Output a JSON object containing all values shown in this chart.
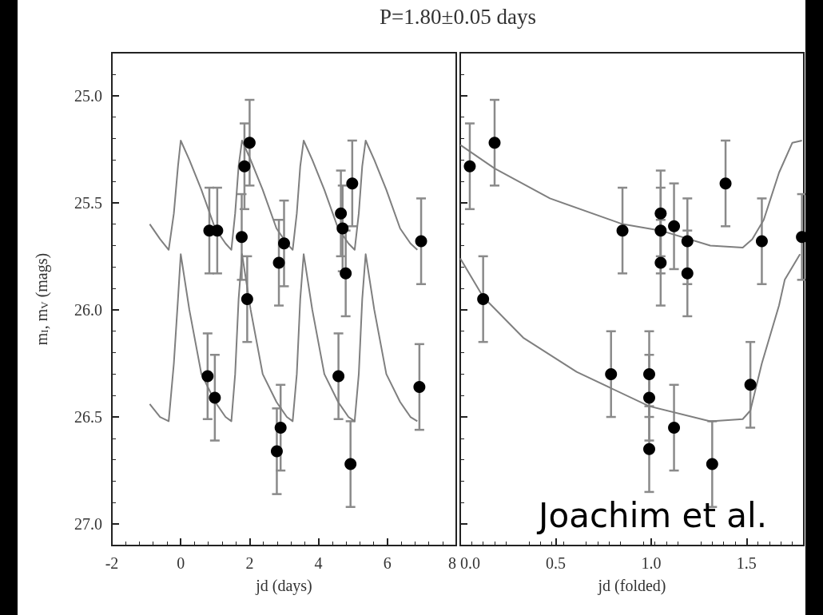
{
  "chart_data": [
    {
      "type": "scatter",
      "title": "P=1.80±0.05 days",
      "xlabel": "jd (days)",
      "ylabel": "m$_{I}$, m$_{V}$ (mags)",
      "xlim": [
        -2,
        8.0
      ],
      "xticks": [
        -2,
        0,
        2,
        4,
        6,
        8
      ],
      "ylim": [
        27.1,
        24.8
      ],
      "yticks": [
        {
          "value": 25,
          "label": "25.0"
        },
        25.5,
        {
          "value": 26,
          "label": "26.0"
        },
        26.5,
        {
          "value": 27,
          "label": "27.0"
        }
      ],
      "marker": "circle",
      "series": [
        {
          "color": "#000000",
          "x": [
            0.83,
            1.06,
            1.77,
            1.85,
            2.0,
            2.85,
            3.0,
            4.65,
            4.7,
            4.79,
            4.98,
            6.98
          ],
          "values": [
            25.63,
            25.63,
            25.66,
            25.33,
            25.22,
            25.78,
            25.69,
            25.55,
            25.62,
            25.83,
            25.41,
            25.68
          ],
          "errors": [
            0.2,
            0.2,
            0.2,
            0.2,
            0.2,
            0.2,
            0.2,
            0.2,
            0.2,
            0.2,
            0.2,
            0.2
          ]
        },
        {
          "color": "#000000",
          "x": [
            0.78,
            0.99,
            1.93,
            2.79,
            2.9,
            4.58,
            4.93,
            6.93
          ],
          "values": [
            26.31,
            26.41,
            25.95,
            26.66,
            26.55,
            26.31,
            26.72,
            26.36
          ],
          "errors": [
            0.2,
            0.2,
            0.2,
            0.2,
            0.2,
            0.2,
            0.2,
            0.2
          ]
        },
        {
          "type": "line",
          "marker": "none",
          "color": "#7f7f7f",
          "x": [
            -0.9,
            -0.6,
            -0.35,
            -0.2,
            -0.08,
            0,
            0.25,
            0.6,
            1.0,
            1.3,
            1.47,
            1.58,
            1.68,
            1.78,
            2.03,
            2.38,
            2.78,
            3.08,
            3.25,
            3.37,
            3.47,
            3.57,
            3.82,
            4.17,
            4.57,
            4.87,
            5.05,
            5.17,
            5.27,
            5.37,
            5.62,
            5.97,
            6.37,
            6.67,
            6.87
          ],
          "values": [
            25.6,
            25.67,
            25.72,
            25.55,
            25.33,
            25.21,
            25.3,
            25.44,
            25.62,
            25.69,
            25.72,
            25.55,
            25.33,
            25.21,
            25.3,
            25.44,
            25.62,
            25.69,
            25.72,
            25.55,
            25.33,
            25.21,
            25.3,
            25.44,
            25.62,
            25.69,
            25.72,
            25.55,
            25.33,
            25.21,
            25.3,
            25.44,
            25.62,
            25.69,
            25.72
          ]
        },
        {
          "type": "line",
          "marker": "none",
          "color": "#7f7f7f",
          "x": [
            -0.9,
            -0.6,
            -0.35,
            -0.2,
            -0.08,
            0,
            0.25,
            0.6,
            1.0,
            1.3,
            1.47,
            1.58,
            1.68,
            1.78,
            2.03,
            2.38,
            2.78,
            3.08,
            3.25,
            3.37,
            3.47,
            3.57,
            3.82,
            4.17,
            4.57,
            4.87,
            5.05,
            5.17,
            5.27,
            5.37,
            5.62,
            5.97,
            6.37,
            6.67,
            6.87
          ],
          "values": [
            26.44,
            26.5,
            26.52,
            26.25,
            25.95,
            25.74,
            26.0,
            26.3,
            26.43,
            26.5,
            26.52,
            26.3,
            25.95,
            25.74,
            26.0,
            26.3,
            26.43,
            26.5,
            26.52,
            26.3,
            25.95,
            25.74,
            26.0,
            26.3,
            26.43,
            26.5,
            26.52,
            26.3,
            25.95,
            25.74,
            26.0,
            26.3,
            26.43,
            26.5,
            26.52
          ]
        }
      ]
    },
    {
      "type": "scatter",
      "xlabel": "jd (folded)",
      "xlim": [
        0,
        1.8
      ],
      "xticks": [
        {
          "value": 0,
          "label": "0.0"
        },
        0.5,
        {
          "value": 1,
          "label": "1.0"
        },
        1.5
      ],
      "ylim": [
        27.1,
        24.8
      ],
      "yticks": [
        25,
        25.5,
        26,
        26.5,
        27
      ],
      "tick_labels": "x",
      "marker": "circle",
      "annotations": [
        "Joachim et al."
      ],
      "series": [
        {
          "color": "#000000",
          "x": [
            0.05,
            0.18,
            0.85,
            1.05,
            1.05,
            1.05,
            1.12,
            1.19,
            1.19,
            1.39,
            1.58,
            1.79
          ],
          "values": [
            25.33,
            25.22,
            25.63,
            25.55,
            25.63,
            25.78,
            25.61,
            25.68,
            25.83,
            25.41,
            25.68,
            25.66
          ],
          "errors": [
            0.2,
            0.2,
            0.2,
            0.2,
            0.2,
            0.2,
            0.2,
            0.2,
            0.2,
            0.2,
            0.2,
            0.2
          ]
        },
        {
          "color": "#000000",
          "x": [
            0.12,
            0.79,
            0.99,
            0.99,
            0.99,
            1.12,
            1.32,
            1.52
          ],
          "values": [
            25.95,
            26.3,
            26.3,
            26.41,
            26.65,
            26.55,
            26.72,
            26.35
          ],
          "errors": [
            0.2,
            0.2,
            0.2,
            0.2,
            0.2,
            0.2,
            0.2,
            0.2
          ]
        },
        {
          "type": "line",
          "marker": "none",
          "color": "#7f7f7f",
          "x": [
            0,
            0.18,
            0.47,
            0.85,
            1.05,
            1.31,
            1.48,
            1.53,
            1.59,
            1.67,
            1.74,
            1.79
          ],
          "values": [
            25.23,
            25.34,
            25.48,
            25.6,
            25.63,
            25.7,
            25.71,
            25.67,
            25.58,
            25.36,
            25.22,
            25.21
          ]
        },
        {
          "type": "line",
          "marker": "none",
          "color": "#7f7f7f",
          "x": [
            0,
            0.12,
            0.33,
            0.61,
            0.99,
            1.31,
            1.48,
            1.52,
            1.58,
            1.67,
            1.7,
            1.78
          ],
          "values": [
            25.76,
            25.94,
            26.13,
            26.29,
            26.45,
            26.52,
            26.51,
            26.47,
            26.25,
            25.98,
            25.86,
            25.74
          ]
        }
      ]
    }
  ]
}
